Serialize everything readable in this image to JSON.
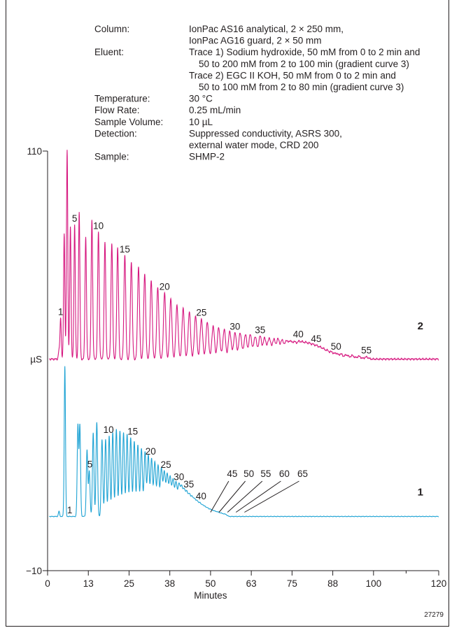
{
  "figure_number": "27279",
  "conditions": [
    {
      "label": "Column:",
      "lines": [
        "IonPac AS16 analytical, 2 × 250 mm,",
        "IonPac AG16 guard, 2 × 50 mm"
      ]
    },
    {
      "label": "Eluent:",
      "lines": [
        "Trace 1) Sodium hydroxide, 50 mM from 0 to 2 min and",
        "50 to 200 mM from 2 to 100 min (gradient curve 3)",
        "Trace 2) EGC II KOH, 50 mM from 0 to 2 min and",
        "50 to 100 mM from 2 to 80 min (gradient curve 3)"
      ]
    },
    {
      "label": "Temperature:",
      "lines": [
        "30 °C"
      ]
    },
    {
      "label": "Flow Rate:",
      "lines": [
        "0.25 mL/min"
      ]
    },
    {
      "label": "Sample Volume:",
      "lines": [
        "10 µL"
      ]
    },
    {
      "label": "Detection:",
      "lines": [
        "Suppressed conductivity, ASRS 300,",
        "external water mode, CRD 200"
      ]
    },
    {
      "label": "Sample:",
      "lines": [
        "SHMP-2"
      ]
    }
  ],
  "chart_data": {
    "type": "line",
    "xlabel": "Minutes",
    "ylabel": "µS",
    "xlim": [
      0,
      120
    ],
    "ylim": [
      -10,
      110
    ],
    "x_ticks": [
      "0",
      "13",
      "25",
      "38",
      "50",
      "63",
      "75",
      "88",
      "100",
      "120"
    ],
    "x_tick_values": [
      0,
      12.5,
      25,
      37.5,
      50,
      62.5,
      75,
      87.5,
      100,
      120
    ],
    "y_ticks": [
      "110",
      "-10"
    ],
    "grid": false,
    "series": [
      {
        "name": "2",
        "color": "#d6177f",
        "baseline": 50.5,
        "noise": 0.3,
        "peaks": [
          {
            "t": 3.5,
            "h": 2.5
          },
          {
            "t": 4.0,
            "h": 12
          },
          {
            "t": 5.1,
            "h": 36
          },
          {
            "t": 6.0,
            "h": 60
          },
          {
            "t": 7.0,
            "h": 38
          },
          {
            "t": 8.3,
            "h": 38.5
          },
          {
            "t": 9.7,
            "h": 42
          },
          {
            "t": 11.7,
            "h": 35
          },
          {
            "t": 13.6,
            "h": 40
          },
          {
            "t": 15.6,
            "h": 36.5
          },
          {
            "t": 17.6,
            "h": 33.5
          },
          {
            "t": 19.7,
            "h": 33
          },
          {
            "t": 21.5,
            "h": 32
          },
          {
            "t": 23.7,
            "h": 30
          },
          {
            "t": 25.7,
            "h": 28
          },
          {
            "t": 27.9,
            "h": 26.5
          },
          {
            "t": 29.8,
            "h": 24.5
          },
          {
            "t": 31.8,
            "h": 22.5
          },
          {
            "t": 33.8,
            "h": 20.5
          },
          {
            "t": 35.9,
            "h": 19
          },
          {
            "t": 37.8,
            "h": 17.5
          },
          {
            "t": 39.7,
            "h": 15.5
          },
          {
            "t": 41.6,
            "h": 14.5
          },
          {
            "t": 43.5,
            "h": 13.5
          },
          {
            "t": 45.4,
            "h": 12.5
          },
          {
            "t": 47.2,
            "h": 11.5
          },
          {
            "t": 49.0,
            "h": 10.5
          },
          {
            "t": 50.8,
            "h": 9.5
          },
          {
            "t": 52.5,
            "h": 9
          },
          {
            "t": 54.2,
            "h": 8.5
          },
          {
            "t": 55.9,
            "h": 8
          },
          {
            "t": 57.5,
            "h": 7.5
          },
          {
            "t": 59.1,
            "h": 7.5
          },
          {
            "t": 60.7,
            "h": 7
          },
          {
            "t": 62.2,
            "h": 7
          },
          {
            "t": 63.7,
            "h": 6.5
          },
          {
            "t": 65.2,
            "h": 6.5
          },
          {
            "t": 66.6,
            "h": 6
          },
          {
            "t": 68.0,
            "h": 6
          },
          {
            "t": 69.4,
            "h": 5.5
          },
          {
            "t": 70.7,
            "h": 5.5
          },
          {
            "t": 72.0,
            "h": 5.2
          },
          {
            "t": 73.3,
            "h": 5
          },
          {
            "t": 74.5,
            "h": 4.8
          },
          {
            "t": 75.7,
            "h": 4.6
          },
          {
            "t": 76.9,
            "h": 4.4
          },
          {
            "t": 78.0,
            "h": 4.2
          },
          {
            "t": 79.1,
            "h": 4
          },
          {
            "t": 80.2,
            "h": 3.8
          },
          {
            "t": 81.3,
            "h": 3.5
          },
          {
            "t": 82.4,
            "h": 3.2
          },
          {
            "t": 83.5,
            "h": 2.8
          },
          {
            "t": 84.6,
            "h": 2.5
          },
          {
            "t": 85.8,
            "h": 2.2
          },
          {
            "t": 87.1,
            "h": 1.9
          },
          {
            "t": 88.5,
            "h": 1.6
          },
          {
            "t": 90.0,
            "h": 1.4
          },
          {
            "t": 91.7,
            "h": 1.2
          },
          {
            "t": 93.5,
            "h": 1.0
          },
          {
            "t": 95.5,
            "h": 0.8
          },
          {
            "t": 97.8,
            "h": 0.6
          }
        ],
        "peak_labels": [
          {
            "text": "1",
            "t": 4.0
          },
          {
            "text": "5",
            "t": 8.3
          },
          {
            "text": "10",
            "t": 15.6
          },
          {
            "text": "15",
            "t": 23.7
          },
          {
            "text": "20",
            "t": 35.9
          },
          {
            "text": "25",
            "t": 47.2
          },
          {
            "text": "30",
            "t": 57.5
          },
          {
            "text": "35",
            "t": 65.2
          },
          {
            "text": "40",
            "t": 76.9
          },
          {
            "text": "45",
            "t": 82.4
          },
          {
            "text": "50",
            "t": 88.5
          },
          {
            "text": "55",
            "t": 97.8
          }
        ]
      },
      {
        "name": "1",
        "color": "#1fa3d4",
        "baseline": 5.5,
        "noise": 0.1,
        "peaks": [
          {
            "t": 3.5,
            "h": 1.5
          },
          {
            "t": 5.3,
            "h": 43
          },
          {
            "t": 9.3,
            "h": 26
          },
          {
            "t": 9.9,
            "h": 26
          },
          {
            "t": 12.1,
            "h": 19
          },
          {
            "t": 12.8,
            "h": 13
          },
          {
            "t": 14.0,
            "h": 24
          },
          {
            "t": 15.1,
            "h": 27
          },
          {
            "t": 16.7,
            "h": 22
          },
          {
            "t": 17.8,
            "h": 22
          },
          {
            "t": 18.9,
            "h": 23
          },
          {
            "t": 20.0,
            "h": 24
          },
          {
            "t": 21.1,
            "h": 25
          },
          {
            "t": 22.2,
            "h": 24.5
          },
          {
            "t": 23.3,
            "h": 24
          },
          {
            "t": 24.4,
            "h": 23.5
          },
          {
            "t": 25.5,
            "h": 22.5
          },
          {
            "t": 26.6,
            "h": 21.5
          },
          {
            "t": 27.7,
            "h": 20.5
          },
          {
            "t": 28.8,
            "h": 19.5
          },
          {
            "t": 29.9,
            "h": 18.5
          },
          {
            "t": 30.9,
            "h": 17.5
          },
          {
            "t": 31.9,
            "h": 16.5
          },
          {
            "t": 32.9,
            "h": 15.5
          },
          {
            "t": 33.9,
            "h": 14.5
          },
          {
            "t": 34.9,
            "h": 13.5
          },
          {
            "t": 35.8,
            "h": 12.5
          },
          {
            "t": 36.7,
            "h": 11.8
          },
          {
            "t": 37.6,
            "h": 11
          },
          {
            "t": 38.5,
            "h": 10.2
          },
          {
            "t": 39.4,
            "h": 9.4
          },
          {
            "t": 40.3,
            "h": 8.6
          },
          {
            "t": 41.1,
            "h": 7.8
          },
          {
            "t": 41.9,
            "h": 7
          },
          {
            "t": 42.7,
            "h": 6.3
          },
          {
            "t": 43.5,
            "h": 5.6
          },
          {
            "t": 44.3,
            "h": 5
          },
          {
            "t": 45.1,
            "h": 4.4
          },
          {
            "t": 45.9,
            "h": 3.8
          },
          {
            "t": 46.7,
            "h": 3.3
          },
          {
            "t": 47.5,
            "h": 2.8
          },
          {
            "t": 48.3,
            "h": 2.4
          },
          {
            "t": 49.1,
            "h": 2
          },
          {
            "t": 49.9,
            "h": 1.7
          },
          {
            "t": 50.7,
            "h": 1.4
          },
          {
            "t": 51.5,
            "h": 1.2
          },
          {
            "t": 52.3,
            "h": 1
          },
          {
            "t": 53.1,
            "h": 0.8
          },
          {
            "t": 53.9,
            "h": 0.6
          },
          {
            "t": 54.7,
            "h": 0.5
          }
        ],
        "peak_labels": [
          {
            "text": "1",
            "t": 6.8
          },
          {
            "text": "5",
            "t": 13.0
          },
          {
            "text": "10",
            "t": 18.7
          },
          {
            "text": "15",
            "t": 26.1
          },
          {
            "text": "20",
            "t": 31.6
          },
          {
            "text": "25",
            "t": 36.3
          },
          {
            "text": "30",
            "t": 40.3
          },
          {
            "text": "35",
            "t": 43.3
          },
          {
            "text": "40",
            "t": 47.1
          }
        ],
        "callouts": [
          {
            "text": "45",
            "t": 56.0
          },
          {
            "text": "50",
            "t": 61.1
          },
          {
            "text": "55",
            "t": 66.3
          },
          {
            "text": "60",
            "t": 72.0
          },
          {
            "text": "65",
            "t": 77.6
          }
        ]
      }
    ]
  }
}
